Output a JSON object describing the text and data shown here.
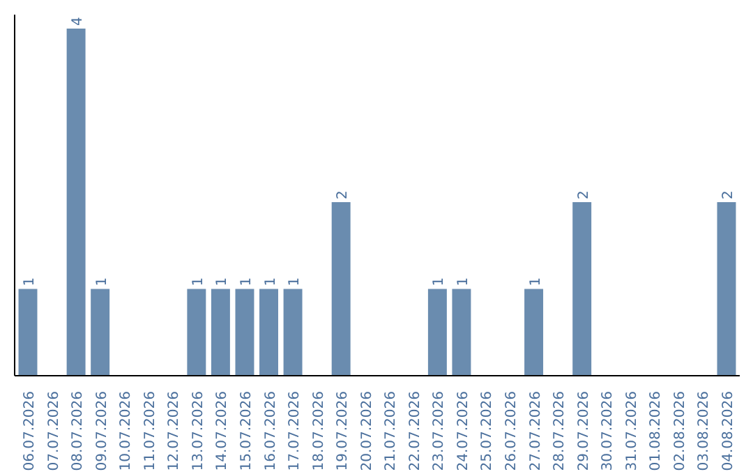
{
  "chart_data": {
    "type": "bar",
    "color": "#6a8caf",
    "categories": [
      "06.07.2026",
      "07.07.2026",
      "08.07.2026",
      "09.07.2026",
      "10.07.2026",
      "11.07.2026",
      "12.07.2026",
      "13.07.2026",
      "14.07.2026",
      "15.07.2026",
      "16.07.2026",
      "17.07.2026",
      "18.07.2026",
      "19.07.2026",
      "20.07.2026",
      "21.07.2026",
      "22.07.2026",
      "23.07.2026",
      "24.07.2026",
      "25.07.2026",
      "26.07.2026",
      "27.07.2026",
      "28.07.2026",
      "29.07.2026",
      "30.07.2026",
      "31.07.2026",
      "01.08.2026",
      "02.08.2026",
      "03.08.2026",
      "04.08.2026"
    ],
    "values": [
      1,
      0,
      4,
      1,
      0,
      0,
      0,
      1,
      1,
      1,
      1,
      1,
      0,
      2,
      0,
      0,
      0,
      1,
      1,
      0,
      0,
      1,
      0,
      2,
      0,
      0,
      0,
      0,
      0,
      2
    ],
    "value_labels": [
      "1",
      null,
      "4",
      "1",
      null,
      null,
      null,
      "1",
      "1",
      "1",
      "1",
      "1",
      null,
      "2",
      null,
      null,
      null,
      "1",
      "1",
      null,
      null,
      "1",
      null,
      "2",
      null,
      null,
      null,
      null,
      null,
      "2"
    ],
    "grid": false,
    "tick_labels": "x"
  }
}
